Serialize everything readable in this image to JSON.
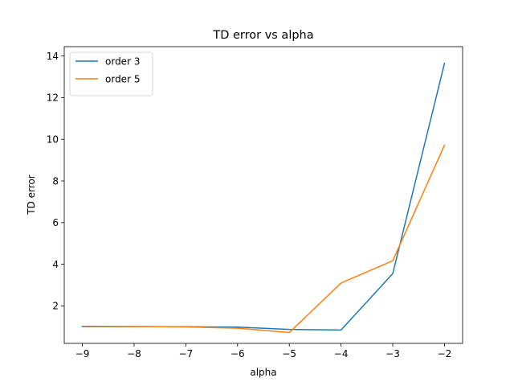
{
  "chart_data": {
    "type": "line",
    "title": "TD error vs alpha",
    "xlabel": "alpha",
    "ylabel": "TD error",
    "x": [
      -9,
      -8,
      -7,
      -6,
      -5,
      -4,
      -3,
      -2
    ],
    "xlim": [
      -9.35,
      -1.65
    ],
    "ylim": [
      0.2,
      14.45
    ],
    "xticks": [
      -9,
      -8,
      -7,
      -6,
      -5,
      -4,
      -3,
      -2
    ],
    "xtick_labels": [
      "−9",
      "−8",
      "−7",
      "−6",
      "−5",
      "−4",
      "−3",
      "−2"
    ],
    "yticks": [
      2,
      4,
      6,
      8,
      10,
      12,
      14
    ],
    "ytick_labels": [
      "2",
      "4",
      "6",
      "8",
      "10",
      "12",
      "14"
    ],
    "grid": false,
    "legend_position": "top-left",
    "series": [
      {
        "name": "order 3",
        "color": "#1f77b4",
        "values": [
          1.0,
          1.0,
          1.0,
          0.98,
          0.87,
          0.84,
          3.55,
          13.65
        ]
      },
      {
        "name": "order 5",
        "color": "#ff7f0e",
        "values": [
          1.02,
          1.01,
          0.99,
          0.93,
          0.72,
          3.1,
          4.17,
          9.72
        ]
      }
    ]
  }
}
